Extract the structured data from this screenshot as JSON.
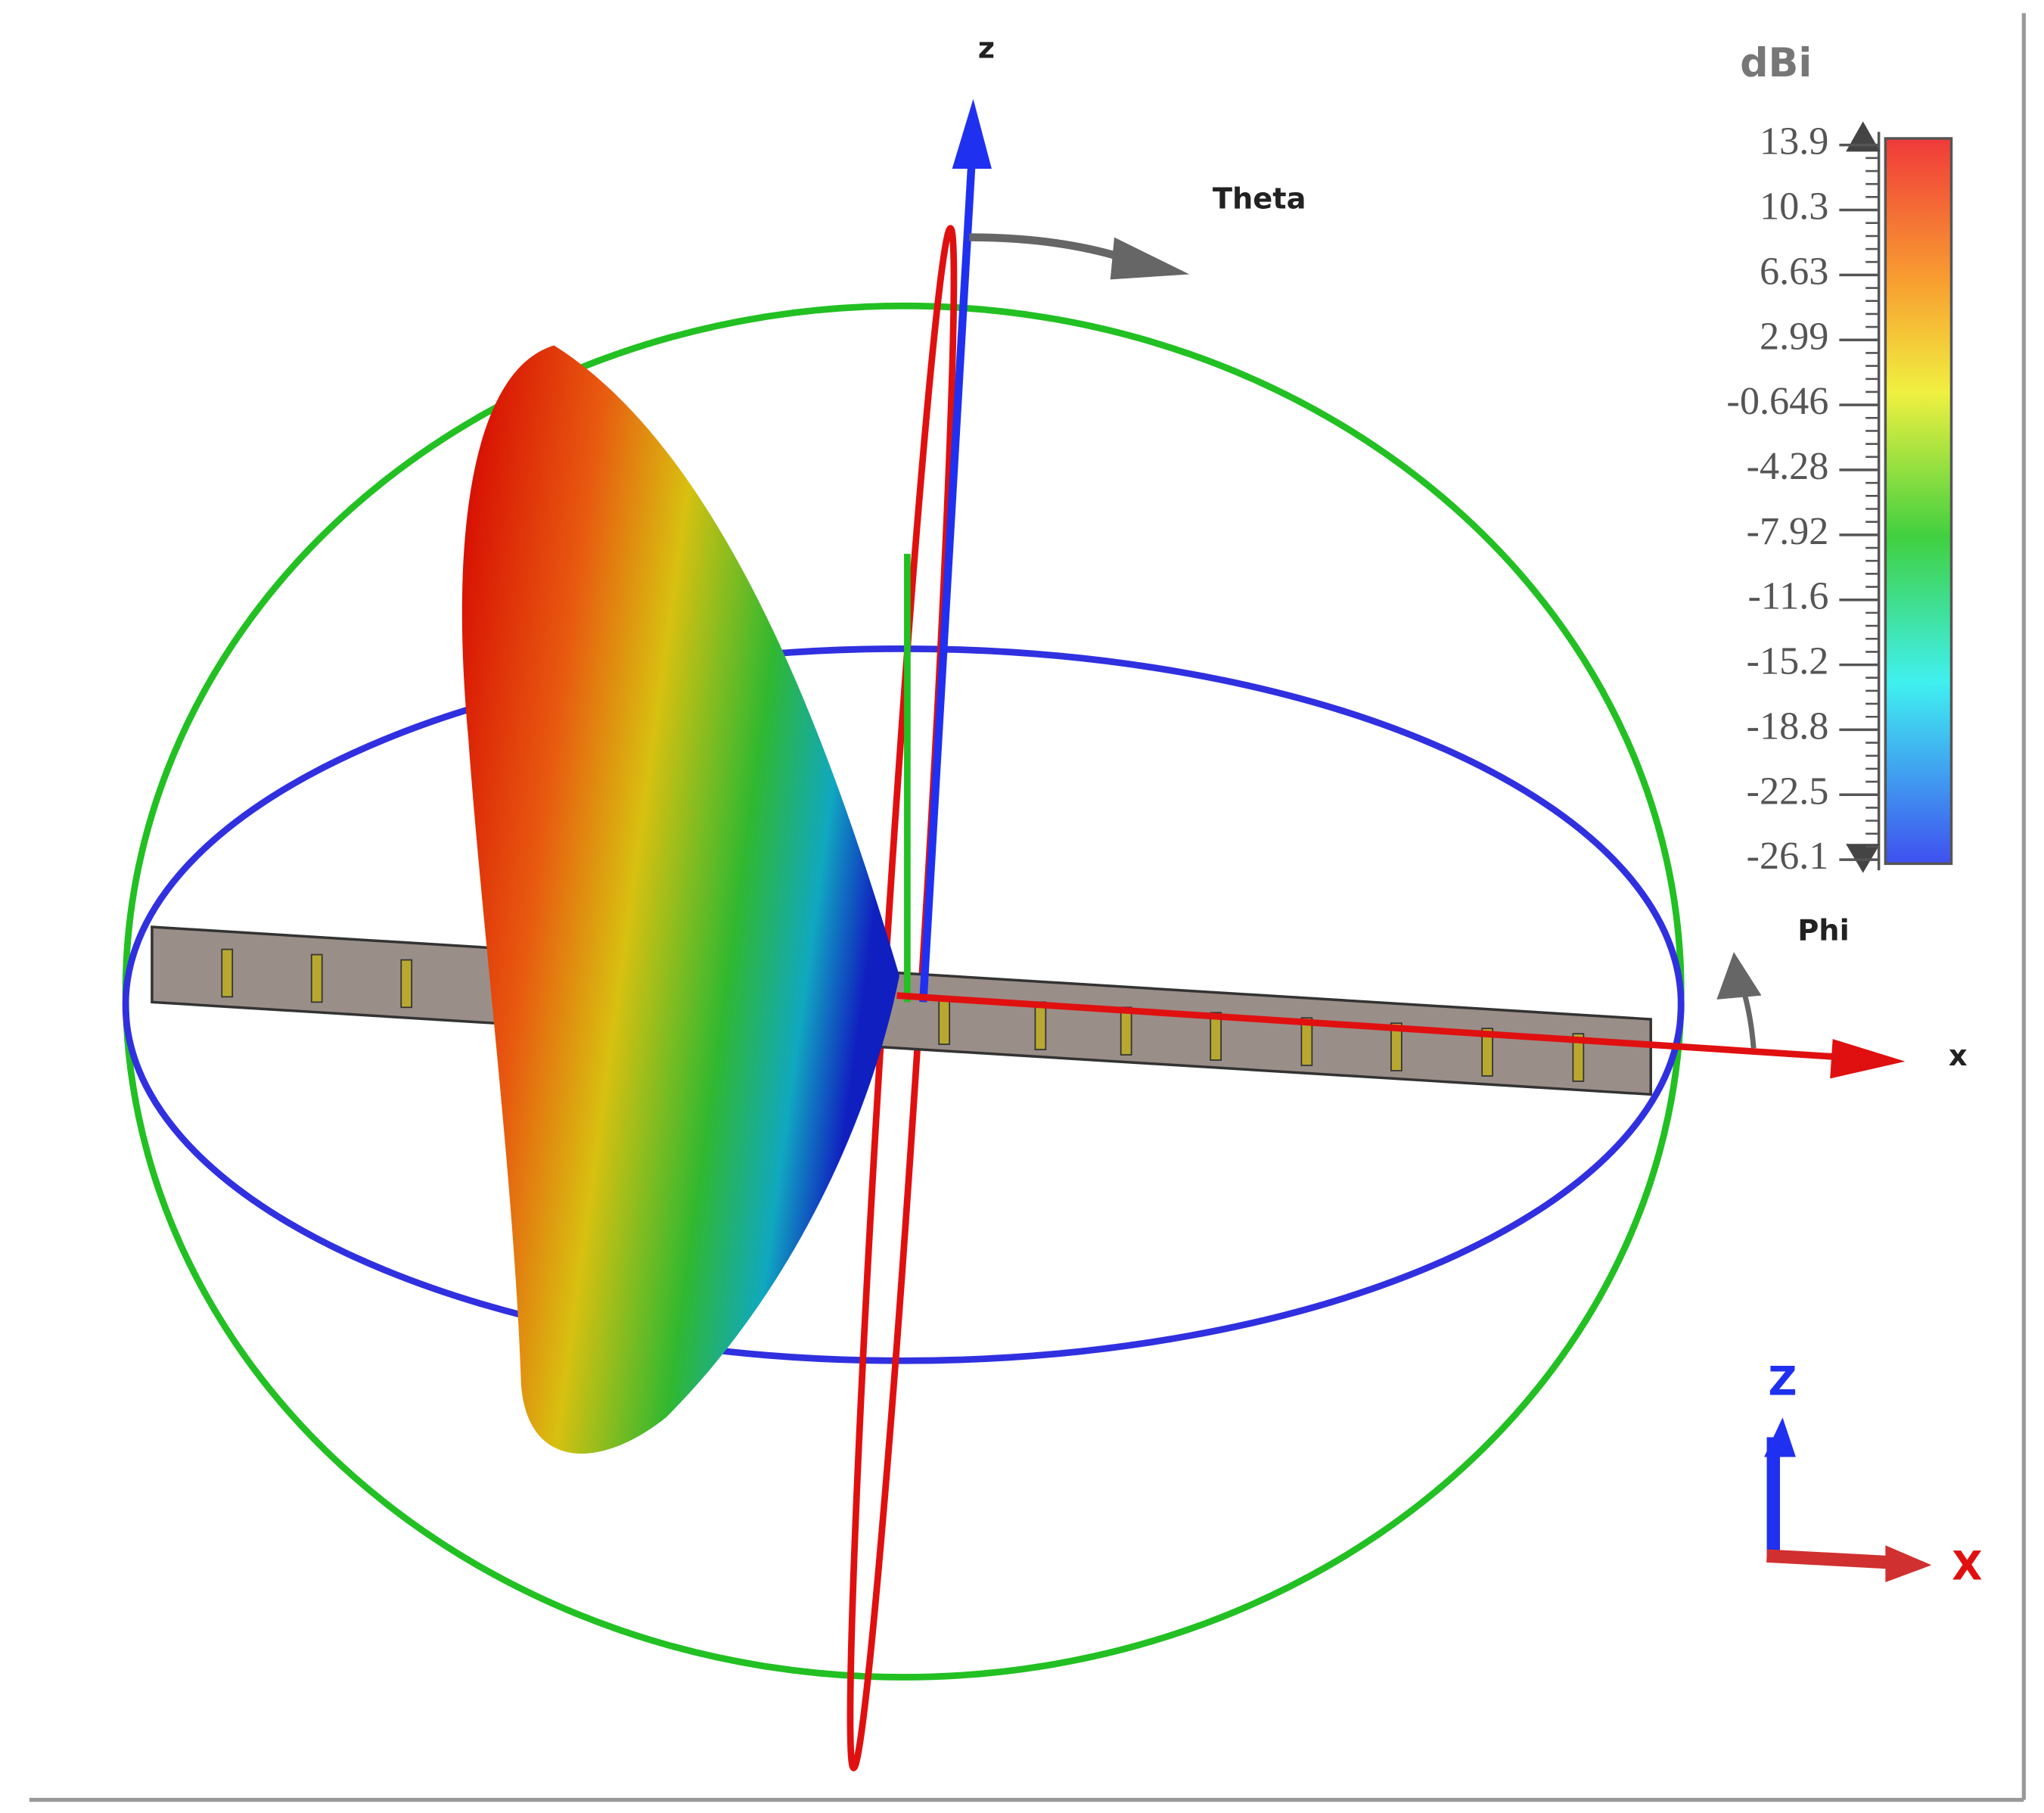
{
  "axes": {
    "z": "z",
    "theta": "Theta",
    "phi": "Phi",
    "x": "x"
  },
  "colorbar": {
    "unit": "dBi",
    "labels": [
      "13.9",
      "10.3",
      "6.63",
      "2.99",
      "-0.646",
      "-4.28",
      "-7.92",
      "-11.6",
      "-15.2",
      "-18.8",
      "-22.5",
      "-26.1"
    ]
  },
  "triad": {
    "z": "Z",
    "x": "X"
  }
}
